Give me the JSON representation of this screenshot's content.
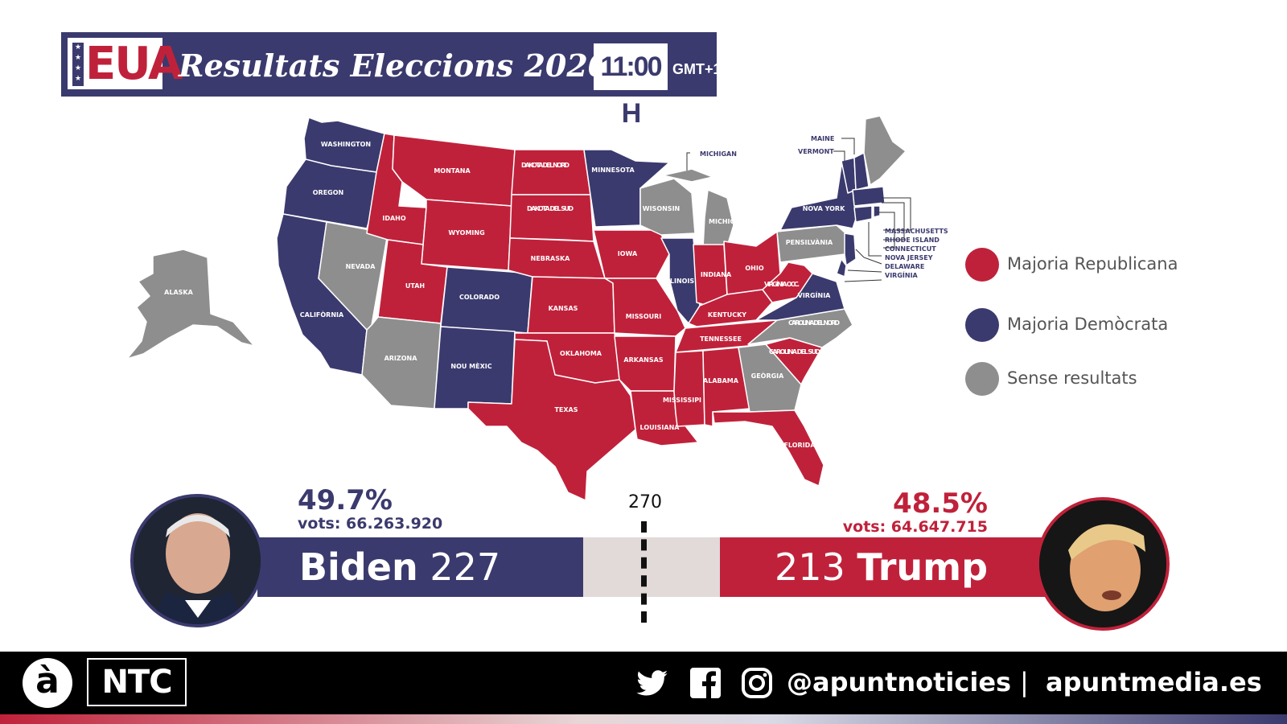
{
  "header": {
    "logo_text": "EUA",
    "title": "Resultats Eleccions 2020",
    "time": "11:00 H",
    "timezone": "GMT+1"
  },
  "colors": {
    "republican": "#c0213a",
    "democrat": "#3b3a6e",
    "no_result": "#8e8e8e",
    "threshold_gap": "#e2d9d9"
  },
  "legend": [
    {
      "label": "Majoria Republicana",
      "color": "#c0213a"
    },
    {
      "label": "Majoria Demòcrata",
      "color": "#3b3a6e"
    },
    {
      "label": "Sense resultats",
      "color": "#8e8e8e"
    }
  ],
  "map": {
    "states": {
      "washington": {
        "label": "WASHINGTON",
        "result": "democrat"
      },
      "oregon": {
        "label": "OREGON",
        "result": "democrat"
      },
      "california": {
        "label": "CALIFÒRNIA",
        "result": "democrat"
      },
      "nevada": {
        "label": "NEVADA",
        "result": "none"
      },
      "idaho": {
        "label": "IDAHO",
        "result": "republican"
      },
      "montana": {
        "label": "MONTANA",
        "result": "republican"
      },
      "wyoming": {
        "label": "WYOMING",
        "result": "republican"
      },
      "utah": {
        "label": "UTAH",
        "result": "republican"
      },
      "colorado": {
        "label": "COLORADO",
        "result": "democrat"
      },
      "arizona": {
        "label": "ARIZONA",
        "result": "none"
      },
      "new_mexico": {
        "label": "NOU MÈXIC",
        "result": "democrat"
      },
      "north_dakota": {
        "label": "DAKOTA DEL NORD",
        "result": "republican"
      },
      "south_dakota": {
        "label": "DAKOTA DEL SUD",
        "result": "republican"
      },
      "nebraska": {
        "label": "NEBRASKA",
        "result": "republican"
      },
      "kansas": {
        "label": "KANSAS",
        "result": "republican"
      },
      "oklahoma": {
        "label": "OKLAHOMA",
        "result": "republican"
      },
      "texas": {
        "label": "TEXAS",
        "result": "republican"
      },
      "minnesota": {
        "label": "MINNESOTA",
        "result": "democrat"
      },
      "iowa": {
        "label": "IOWA",
        "result": "republican"
      },
      "missouri": {
        "label": "MISSOURI",
        "result": "republican"
      },
      "arkansas": {
        "label": "ARKANSAS",
        "result": "republican"
      },
      "louisiana": {
        "label": "LOUISIANA",
        "result": "republican"
      },
      "wisconsin": {
        "label": "WISONSIN",
        "result": "none"
      },
      "illinois": {
        "label": "ILLINOIS",
        "result": "democrat"
      },
      "michigan": {
        "label": "MICHIGAN",
        "result": "none"
      },
      "indiana": {
        "label": "INDIANA",
        "result": "republican"
      },
      "ohio": {
        "label": "OHIO",
        "result": "republican"
      },
      "kentucky": {
        "label": "KENTUCKY",
        "result": "republican"
      },
      "tennessee": {
        "label": "TENNESSEE",
        "result": "republican"
      },
      "mississippi": {
        "label": "MISSISSIPI",
        "result": "republican"
      },
      "alabama": {
        "label": "ALABAMA",
        "result": "republican"
      },
      "georgia": {
        "label": "GEÒRGIA",
        "result": "none"
      },
      "florida": {
        "label": "FLORIDA",
        "result": "republican"
      },
      "south_carolina": {
        "label": "CAROLINA DEL SUD",
        "result": "republican"
      },
      "north_carolina": {
        "label": "CAROLINA DEL NORD",
        "result": "none"
      },
      "virginia": {
        "label": "VIRGÍNIA",
        "result": "democrat"
      },
      "west_virginia": {
        "label": "VIRGÍNIA OCC.",
        "result": "republican"
      },
      "pennsylvania": {
        "label": "PENSILVÀNIA",
        "result": "none"
      },
      "new_york": {
        "label": "NOVA YORK",
        "result": "democrat"
      },
      "maine": {
        "label": "MAINE",
        "result": "none"
      },
      "vermont": {
        "label": "VERMONT",
        "result": "democrat"
      },
      "massachusetts": {
        "label": "MASSACHUSETTS",
        "result": "democrat"
      },
      "rhode_island": {
        "label": "RHODE ISLAND",
        "result": "democrat"
      },
      "connecticut": {
        "label": "CONNECTICUT",
        "result": "democrat"
      },
      "new_jersey": {
        "label": "NOVA JERSEY",
        "result": "democrat"
      },
      "delaware": {
        "label": "DELAWARE",
        "result": "democrat"
      },
      "alaska": {
        "label": "ALASKA",
        "result": "none"
      }
    }
  },
  "results": {
    "threshold": "270",
    "biden": {
      "name": "Biden",
      "electoral_votes": "227",
      "percent": "49.7%",
      "votes_text": "vots: 66.263.920"
    },
    "trump": {
      "name": "Trump",
      "electoral_votes": "213",
      "percent": "48.5%",
      "votes_text": "vots: 64.647.715"
    }
  },
  "footer": {
    "logo_a": "à",
    "logo_ntc": "NTC",
    "social_icons": [
      "twitter-icon",
      "facebook-icon",
      "instagram-icon"
    ],
    "handle": "@apuntnoticies",
    "separator": "|",
    "website": "apuntmedia.es"
  }
}
